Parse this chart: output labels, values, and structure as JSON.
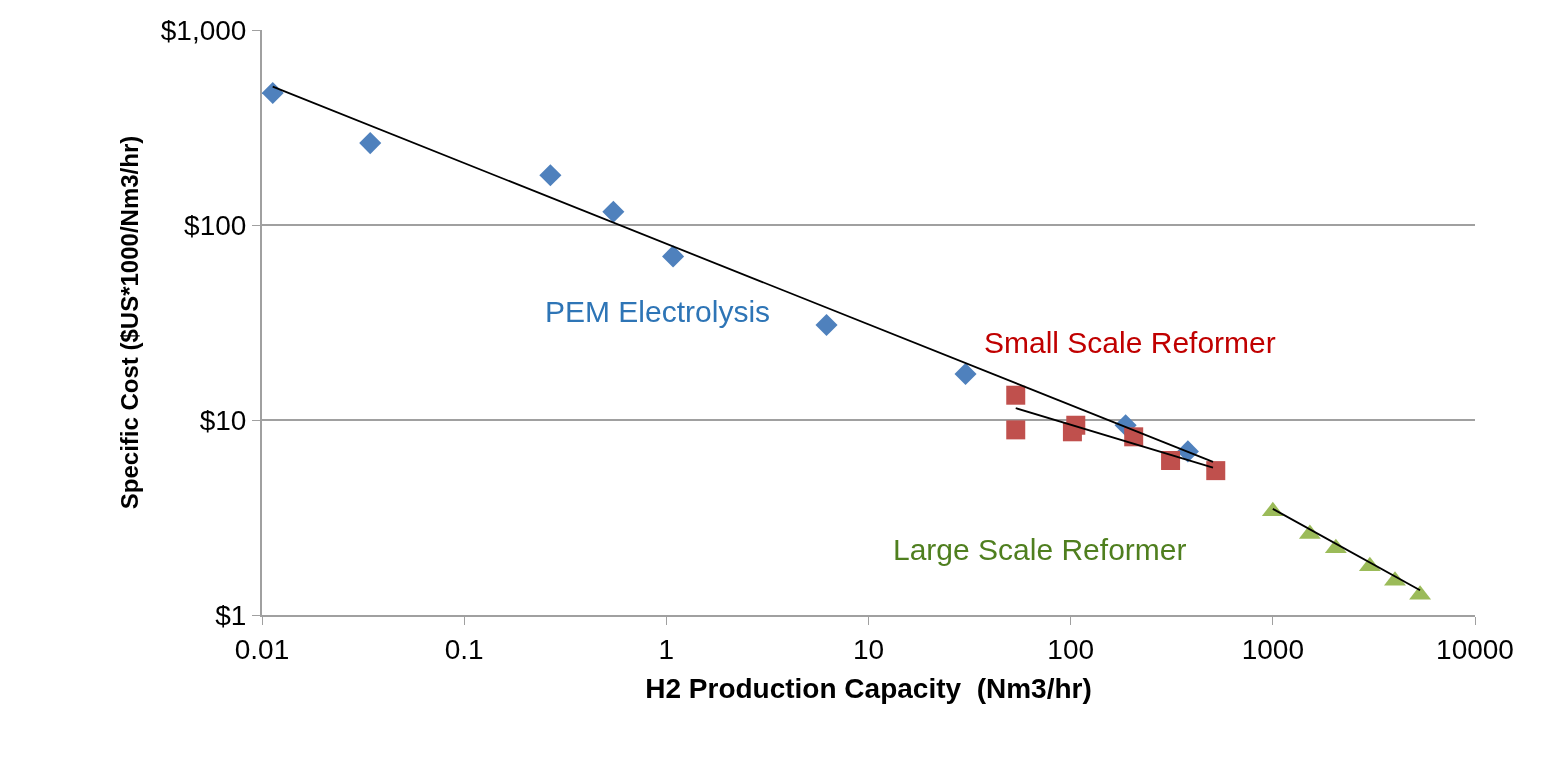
{
  "chart_data": {
    "type": "scatter",
    "xlabel": "H2 Production Capacity  (Nm3/hr)",
    "ylabel": "Specific Cost ($US*1000/Nm3/hr)",
    "log": "xy",
    "grid": "y",
    "xlim": [
      0.01,
      10000
    ],
    "xticks": [
      0.01,
      0.1,
      1,
      10,
      100,
      1000,
      10000
    ],
    "ylim": [
      1,
      1000
    ],
    "yticks": [
      {
        "value": 1,
        "label": "$1"
      },
      {
        "value": 10,
        "label": "$10"
      },
      {
        "value": 100,
        "label": "$100"
      },
      {
        "value": 1000,
        "label": "$1,000"
      }
    ],
    "series": [
      {
        "marker": "diamond",
        "color": "#4f81bd",
        "x": [
          0.0113,
          0.0343,
          0.267,
          0.547,
          1.08,
          6.2,
          30.2,
          187,
          380
        ],
        "values": [
          475,
          263,
          180,
          117,
          69,
          30.7,
          17.2,
          9.4,
          6.9
        ]
      },
      {
        "marker": "square",
        "color": "#c0504d",
        "x": [
          53.5,
          53.5,
          102,
          106,
          205,
          312,
          522
        ],
        "values": [
          13.4,
          8.9,
          8.7,
          9.4,
          8.2,
          6.2,
          5.5
        ]
      },
      {
        "marker": "triangle",
        "color": "#9bbb59",
        "x": [
          1000,
          1525,
          2050,
          3020,
          4020,
          5350
        ],
        "values": [
          3.4,
          2.6,
          2.2,
          1.78,
          1.5,
          1.27
        ]
      },
      {
        "type": "line",
        "marker": "none",
        "color": "#000000",
        "x": [
          0.0113,
          506
        ],
        "values": [
          512,
          6.1
        ]
      },
      {
        "type": "line",
        "marker": "none",
        "color": "#000000",
        "x": [
          53.5,
          506
        ],
        "values": [
          11.5,
          5.7
        ]
      },
      {
        "type": "line",
        "marker": "none",
        "color": "#000000",
        "x": [
          1000,
          5350
        ],
        "values": [
          3.5,
          1.34
        ]
      }
    ],
    "annotations": [
      "PEM Electrolysis",
      "Small Scale Reformer",
      "Large Scale Reformer"
    ]
  }
}
